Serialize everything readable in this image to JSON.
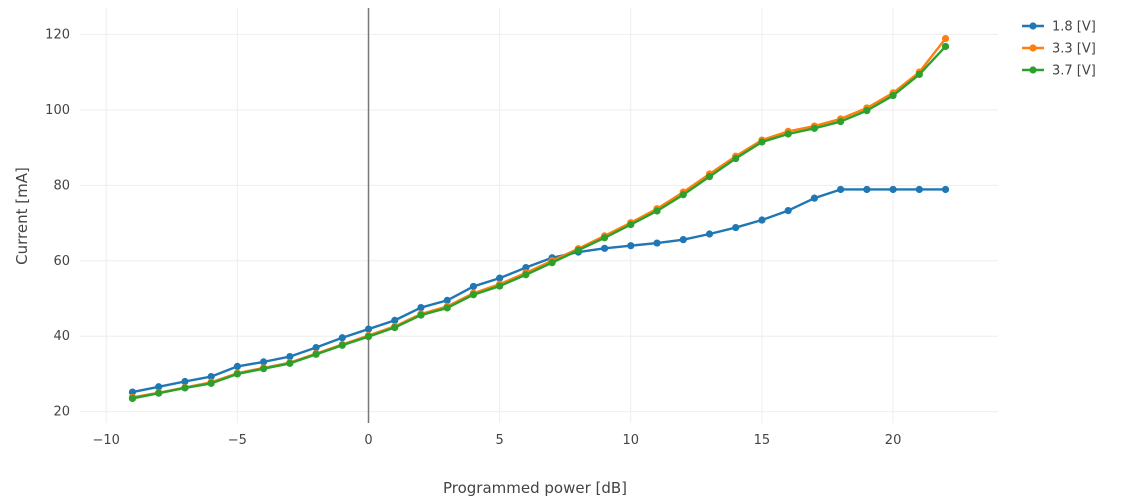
{
  "chart_data": {
    "type": "line",
    "title": "",
    "xlabel": "Programmed power [dB]",
    "ylabel": "Current [mA]",
    "xlim": [
      -11,
      24
    ],
    "ylim": [
      17,
      127
    ],
    "x_ticks": [
      -10,
      -5,
      0,
      5,
      10,
      15,
      20
    ],
    "x_tick_labels": [
      "−10",
      "−5",
      "0",
      "5",
      "10",
      "15",
      "20"
    ],
    "y_ticks": [
      20,
      40,
      60,
      80,
      100,
      120
    ],
    "y_tick_labels": [
      "20",
      "40",
      "60",
      "80",
      "100",
      "120"
    ],
    "grid": true,
    "zero_line_x": 0,
    "legend_position": "top-right",
    "x": [
      -9,
      -8,
      -7,
      -6,
      -5,
      -4,
      -3,
      -2,
      -1,
      0,
      1,
      2,
      3,
      4,
      5,
      6,
      7,
      8,
      9,
      10,
      11,
      12,
      13,
      14,
      15,
      16,
      17,
      18,
      19,
      20,
      21,
      22
    ],
    "series": [
      {
        "name": "1.8 [V]",
        "color": "#1f77b4",
        "values": [
          25.2,
          26.6,
          28.0,
          29.3,
          32.0,
          33.2,
          34.6,
          37.0,
          39.6,
          41.9,
          44.2,
          47.6,
          49.5,
          53.2,
          55.4,
          58.2,
          60.8,
          62.3,
          63.3,
          64.0,
          64.7,
          65.6,
          67.1,
          68.8,
          70.8,
          73.3,
          76.6,
          78.9,
          78.9,
          78.9,
          78.9,
          78.9
        ]
      },
      {
        "name": "3.3 [V]",
        "color": "#ff7f0e",
        "values": [
          23.8,
          25.0,
          26.4,
          27.8,
          30.2,
          31.6,
          33.0,
          35.4,
          37.8,
          40.2,
          42.6,
          45.9,
          47.9,
          51.4,
          53.8,
          56.8,
          60.0,
          63.2,
          66.6,
          70.1,
          73.8,
          78.2,
          83.0,
          87.7,
          92.0,
          94.3,
          95.7,
          97.6,
          100.5,
          104.5,
          110.0,
          118.9
        ]
      },
      {
        "name": "3.7 [V]",
        "color": "#2ca02c",
        "values": [
          23.5,
          24.9,
          26.3,
          27.5,
          30.0,
          31.4,
          32.8,
          35.2,
          37.6,
          39.9,
          42.3,
          45.6,
          47.5,
          51.0,
          53.3,
          56.3,
          59.5,
          62.8,
          66.1,
          69.6,
          73.2,
          77.5,
          82.3,
          87.1,
          91.5,
          93.6,
          95.1,
          96.9,
          99.8,
          103.8,
          109.4,
          116.8
        ]
      }
    ]
  }
}
